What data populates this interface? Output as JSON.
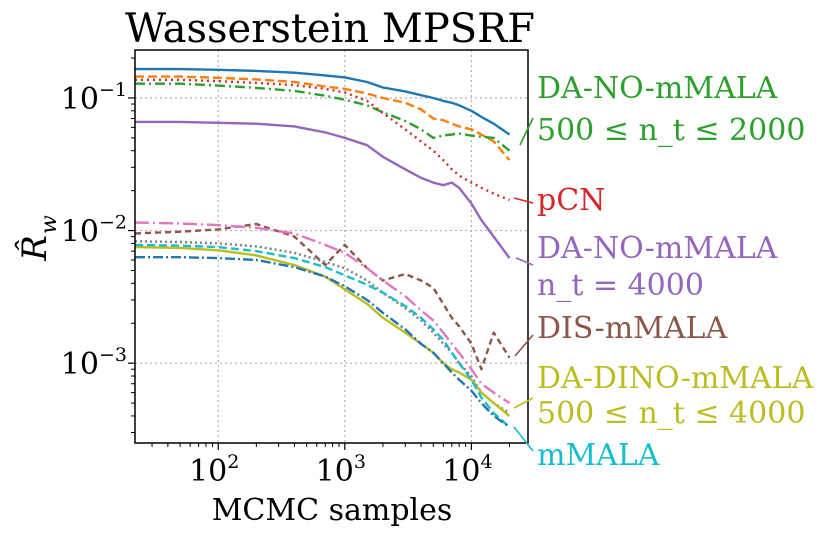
{
  "chart_data": {
    "type": "line",
    "title": "Wasserstein MPSRF",
    "xlabel": "MCMC samples",
    "ylabel": "R̂",
    "ylabel_subscript": "w",
    "xscale": "log",
    "yscale": "log",
    "xlim": [
      22,
      28000
    ],
    "ylim": [
      0.00025,
      0.23
    ],
    "grid": true,
    "x_ticks": [
      {
        "value": 100,
        "base": "10",
        "exp": "2"
      },
      {
        "value": 1000,
        "base": "10",
        "exp": "3"
      },
      {
        "value": 10000,
        "base": "10",
        "exp": "4"
      }
    ],
    "y_ticks": [
      {
        "value": 0.001,
        "base": "10",
        "exp": "−3"
      },
      {
        "value": 0.01,
        "base": "10",
        "exp": "−2"
      },
      {
        "value": 0.1,
        "base": "10",
        "exp": "−1"
      }
    ],
    "x": [
      22,
      50,
      100,
      200,
      400,
      700,
      1000,
      1500,
      2000,
      3000,
      4000,
      5000,
      6000,
      7000,
      8000,
      10000,
      12000,
      15000,
      20000
    ],
    "series": [
      {
        "name": "DA-NO-mMALA (blue)",
        "color": "#1f77b4",
        "dash": "",
        "values": [
          0.165,
          0.165,
          0.163,
          0.16,
          0.155,
          0.148,
          0.143,
          0.132,
          0.12,
          0.112,
          0.105,
          0.1,
          0.095,
          0.092,
          0.088,
          0.08,
          0.072,
          0.064,
          0.053
        ]
      },
      {
        "name": "DA-NO-mMALA (orange)",
        "color": "#ff7f0e",
        "dash": "9,4",
        "values": [
          0.145,
          0.145,
          0.142,
          0.138,
          0.132,
          0.122,
          0.117,
          0.108,
          0.1,
          0.092,
          0.082,
          0.07,
          0.068,
          0.064,
          0.061,
          0.058,
          0.053,
          0.047,
          0.034
        ]
      },
      {
        "name": "DA-NO-mMALA 500 ≤ n_t ≤ 2000",
        "color": "#2ca02c",
        "dash": "10,4,2,4",
        "values": [
          0.128,
          0.128,
          0.124,
          0.119,
          0.113,
          0.104,
          0.097,
          0.088,
          0.078,
          0.067,
          0.058,
          0.05,
          0.052,
          0.053,
          0.054,
          0.052,
          0.051,
          0.05,
          0.04
        ]
      },
      {
        "name": "pCN",
        "color": "#d62728",
        "dash": "2,4",
        "values": [
          0.137,
          0.137,
          0.134,
          0.13,
          0.125,
          0.117,
          0.11,
          0.095,
          0.077,
          0.058,
          0.047,
          0.04,
          0.034,
          0.029,
          0.026,
          0.023,
          0.021,
          0.019,
          0.017
        ]
      },
      {
        "name": "DA-NO-mMALA n_t = 4000",
        "color": "#9467bd",
        "dash": "",
        "values": [
          0.066,
          0.066,
          0.065,
          0.064,
          0.061,
          0.055,
          0.05,
          0.044,
          0.036,
          0.029,
          0.025,
          0.023,
          0.022,
          0.023,
          0.021,
          0.016,
          0.012,
          0.009,
          0.0062
        ]
      },
      {
        "name": "DIS-mMALA",
        "color": "#8c564b",
        "dash": "6,4",
        "values": [
          0.0095,
          0.0098,
          0.0102,
          0.0112,
          0.009,
          0.0055,
          0.0078,
          0.0052,
          0.0042,
          0.0047,
          0.0042,
          0.0037,
          0.0028,
          0.0022,
          0.0019,
          0.0014,
          0.0009,
          0.0017,
          0.0011
        ]
      },
      {
        "name": "DA-NO-mMALA (pink)",
        "color": "#e377c2",
        "dash": "14,4,2,4",
        "values": [
          0.0115,
          0.0113,
          0.011,
          0.0105,
          0.0095,
          0.0078,
          0.0068,
          0.0052,
          0.0042,
          0.0032,
          0.0025,
          0.0021,
          0.0017,
          0.0014,
          0.0012,
          0.0009,
          0.0007,
          0.0006,
          0.0005
        ]
      },
      {
        "name": "DA-NO-mMALA (grey)",
        "color": "#7f7f7f",
        "dash": "2,3",
        "values": [
          0.0083,
          0.0082,
          0.008,
          0.0076,
          0.0068,
          0.0058,
          0.0052,
          0.0042,
          0.0034,
          0.0026,
          0.0021,
          0.0017,
          0.0014,
          0.0012,
          0.001,
          0.0008,
          0.0006,
          0.0005,
          0.00042
        ]
      },
      {
        "name": "DA-DINO-mMALA 500 ≤ n_t ≤ 4000",
        "color": "#bcbd22",
        "dash": "",
        "values": [
          0.0075,
          0.0074,
          0.0071,
          0.0065,
          0.0055,
          0.0045,
          0.0036,
          0.0028,
          0.0022,
          0.0017,
          0.0014,
          0.0012,
          0.001,
          0.0009,
          0.00085,
          0.00075,
          0.0006,
          0.0005,
          0.0004
        ]
      },
      {
        "name": "mMALA",
        "color": "#17becf",
        "dash": "8,4",
        "values": [
          0.0078,
          0.0077,
          0.0075,
          0.007,
          0.0062,
          0.0053,
          0.0046,
          0.0039,
          0.0034,
          0.0027,
          0.0022,
          0.0018,
          0.0015,
          0.0012,
          0.001,
          0.00075,
          0.00055,
          0.00042,
          0.00033
        ]
      },
      {
        "name": "DA-NO-mMALA (dark blue)",
        "color": "#1f77b4",
        "dash": "10,3,2,3",
        "values": [
          0.0063,
          0.0063,
          0.0062,
          0.006,
          0.0053,
          0.0045,
          0.0038,
          0.003,
          0.0024,
          0.0018,
          0.0014,
          0.0012,
          0.001,
          0.00085,
          0.00075,
          0.00062,
          0.0005,
          0.0004,
          0.00033
        ]
      }
    ],
    "annotations": [
      {
        "lines": [
          "DA-NO-mMALA",
          "500 ≤ n_t ≤ 2000"
        ],
        "color": "#2ca02c"
      },
      {
        "lines": [
          "pCN"
        ],
        "color": "#d62728"
      },
      {
        "lines": [
          "DA-NO-mMALA",
          "n_t = 4000"
        ],
        "color": "#9467bd"
      },
      {
        "lines": [
          "DIS-mMALA"
        ],
        "color": "#8c564b"
      },
      {
        "lines": [
          "DA-DINO-mMALA",
          "500 ≤ n_t ≤ 4000"
        ],
        "color": "#bcbd22"
      },
      {
        "lines": [
          "mMALA"
        ],
        "color": "#17becf"
      }
    ]
  }
}
